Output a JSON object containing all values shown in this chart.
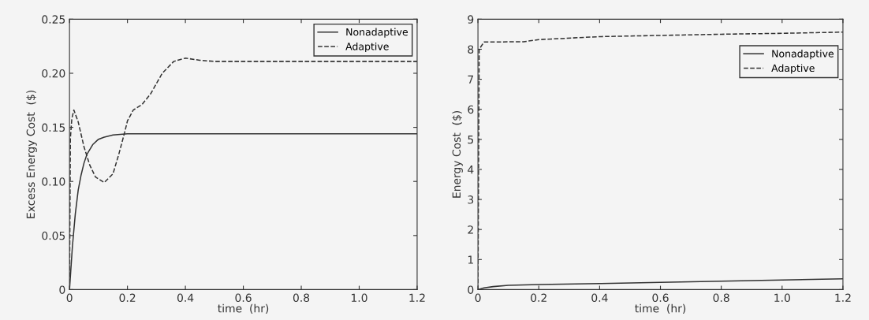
{
  "chart_data": [
    {
      "type": "line",
      "xlabel": "time  (hr)",
      "ylabel": "Excess Energy Cost  ($)",
      "xlim": [
        0,
        1.2
      ],
      "ylim": [
        0,
        0.25
      ],
      "xticks": [
        0,
        0.2,
        0.4,
        0.6,
        0.8,
        {
          "value": 1.0,
          "label": "1.0"
        },
        1.2
      ],
      "yticks": [
        0,
        0.05,
        {
          "value": 0.1,
          "label": "0.10"
        },
        0.15,
        {
          "value": 0.2,
          "label": "0.20"
        },
        0.25
      ],
      "legend": "top right",
      "grid": false,
      "series": [
        {
          "name": "Nonadaptive",
          "color": "#333333",
          "line_style": "solid",
          "x": [
            0,
            0.01,
            0.02,
            0.03,
            0.04,
            0.05,
            0.06,
            0.08,
            0.1,
            0.12,
            0.15,
            0.2,
            0.3,
            0.6,
            1.2
          ],
          "values": [
            0,
            0.04,
            0.07,
            0.092,
            0.106,
            0.117,
            0.125,
            0.134,
            0.139,
            0.141,
            0.143,
            0.144,
            0.144,
            0.144,
            0.144
          ]
        },
        {
          "name": "Adaptive",
          "color": "#333333",
          "line_style": "dashed",
          "x": [
            0,
            0.003,
            0.008,
            0.015,
            0.03,
            0.05,
            0.07,
            0.09,
            0.12,
            0.15,
            0.17,
            0.19,
            0.2,
            0.22,
            0.25,
            0.28,
            0.32,
            0.36,
            0.4,
            0.45,
            0.5,
            0.8,
            1.2
          ],
          "values": [
            0,
            0.14,
            0.158,
            0.166,
            0.155,
            0.132,
            0.115,
            0.104,
            0.099,
            0.107,
            0.125,
            0.145,
            0.156,
            0.166,
            0.171,
            0.181,
            0.2,
            0.211,
            0.214,
            0.212,
            0.211,
            0.211,
            0.211
          ]
        }
      ]
    },
    {
      "type": "line",
      "xlabel": "time  (hr)",
      "ylabel": "Energy Cost  ($)",
      "xlim": [
        0,
        1.2
      ],
      "ylim": [
        0,
        9
      ],
      "xticks": [
        0,
        0.2,
        0.4,
        0.6,
        0.8,
        {
          "value": 1.0,
          "label": "1.0"
        },
        1.2
      ],
      "yticks": [
        0,
        1,
        2,
        3,
        4,
        5,
        6,
        7,
        8,
        9
      ],
      "legend": "top right",
      "grid": false,
      "series": [
        {
          "name": "Nonadaptive",
          "color": "#333333",
          "line_style": "solid",
          "x": [
            0,
            0.02,
            0.05,
            0.1,
            0.2,
            0.4,
            0.6,
            0.8,
            1.0,
            1.2
          ],
          "values": [
            0,
            0.06,
            0.1,
            0.14,
            0.17,
            0.2,
            0.24,
            0.28,
            0.32,
            0.36
          ]
        },
        {
          "name": "Adaptive",
          "color": "#333333",
          "line_style": "dashed",
          "x": [
            0,
            0.004,
            0.02,
            0.15,
            0.2,
            0.4,
            0.6,
            0.8,
            1.0,
            1.2
          ],
          "values": [
            0,
            8.0,
            8.24,
            8.25,
            8.32,
            8.42,
            8.46,
            8.5,
            8.53,
            8.57
          ]
        }
      ]
    }
  ]
}
